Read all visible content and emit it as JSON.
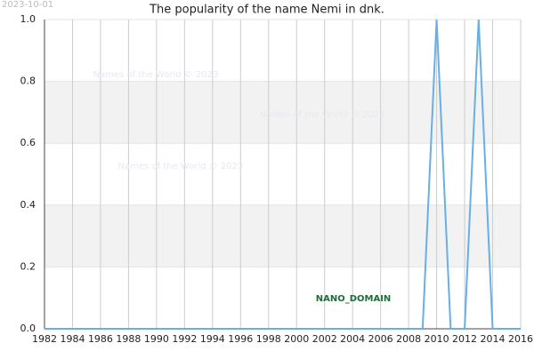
{
  "date_stamp": "2023-10-01",
  "watermarks": [
    "Names of the World © 2023",
    "Names of the World © 2023",
    "Names of the World © 2023"
  ],
  "badge": "NANO_DOMAIN",
  "chart_data": {
    "type": "line",
    "title": "The popularity of the name Nemi in dnk.",
    "x": [
      1982,
      1983,
      1984,
      1985,
      1986,
      1987,
      1988,
      1989,
      1990,
      1991,
      1992,
      1993,
      1994,
      1995,
      1996,
      1997,
      1998,
      1999,
      2000,
      2001,
      2002,
      2003,
      2004,
      2005,
      2006,
      2007,
      2008,
      2009,
      2010,
      2011,
      2012,
      2013,
      2014,
      2015,
      2016
    ],
    "series": [
      {
        "name": "Nemi",
        "color": "#6aaee8",
        "values": [
          0,
          0,
          0,
          0,
          0,
          0,
          0,
          0,
          0,
          0,
          0,
          0,
          0,
          0,
          0,
          0,
          0,
          0,
          0,
          0,
          0,
          0,
          0,
          0,
          0,
          0,
          0,
          0,
          1,
          0,
          0,
          1,
          0,
          0,
          0
        ]
      }
    ],
    "xlim": [
      1982,
      2016
    ],
    "xticks": [
      1982,
      1984,
      1986,
      1988,
      1990,
      1992,
      1994,
      1996,
      1998,
      2000,
      2002,
      2004,
      2006,
      2008,
      2010,
      2012,
      2014,
      2016
    ],
    "ylim": [
      0,
      1
    ],
    "yticks": [
      {
        "value": 0,
        "label": "0.0"
      },
      {
        "value": 0.2,
        "label": "0.2"
      },
      {
        "value": 0.4,
        "label": "0.4"
      },
      {
        "value": 0.6,
        "label": "0.6"
      },
      {
        "value": 0.8,
        "label": "0.8"
      },
      {
        "value": 1,
        "label": "1.0"
      }
    ],
    "grid": true
  }
}
